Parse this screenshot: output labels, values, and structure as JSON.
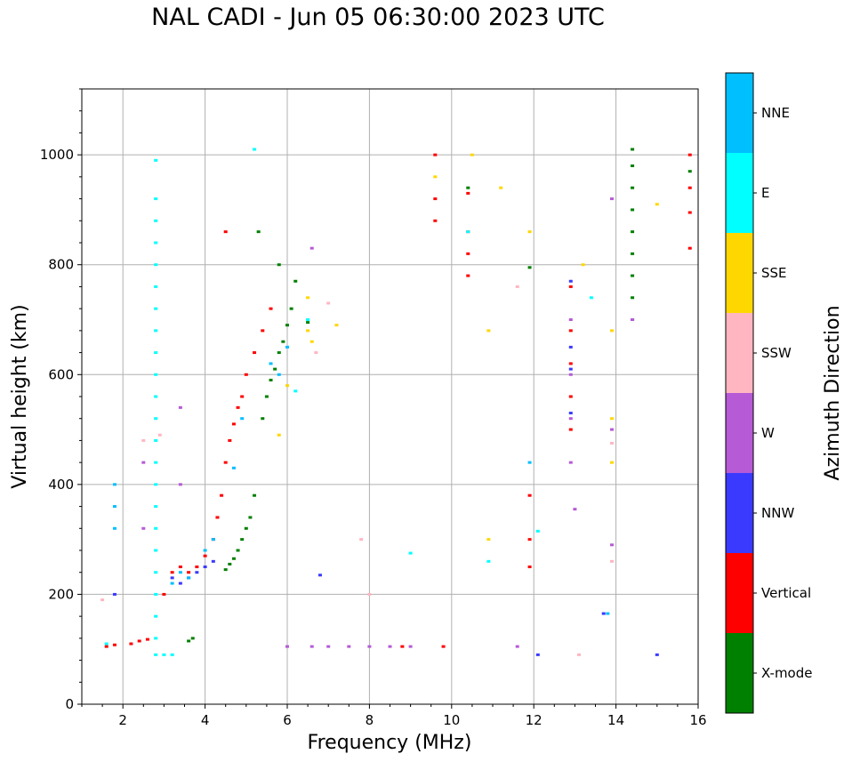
{
  "chart_data": {
    "type": "scatter",
    "title": "NAL CADI - Jun 05 06:30:00 2023 UTC",
    "xlabel": "Frequency (MHz)",
    "ylabel": "Virtual height (km)",
    "xlim": [
      1,
      16
    ],
    "ylim": [
      0,
      1120
    ],
    "xticks": [
      2,
      4,
      6,
      8,
      10,
      12,
      14,
      16
    ],
    "yticks": [
      0,
      200,
      400,
      600,
      800,
      1000
    ],
    "grid": true,
    "colorbar": {
      "label": "Azimuth Direction",
      "categories": [
        {
          "name": "X-mode",
          "color": "#008000"
        },
        {
          "name": "Vertical",
          "color": "#ff0000"
        },
        {
          "name": "NNW",
          "color": "#3a3aff"
        },
        {
          "name": "W",
          "color": "#b65ad6"
        },
        {
          "name": "SSW",
          "color": "#ffb6c1"
        },
        {
          "name": "SSE",
          "color": "#ffd700"
        },
        {
          "name": "E",
          "color": "#00ffff"
        },
        {
          "name": "NNE",
          "color": "#00bfff"
        }
      ]
    },
    "series": [
      {
        "name": "X-mode",
        "points": [
          [
            3.6,
            115
          ],
          [
            3.7,
            120
          ],
          [
            4.5,
            245
          ],
          [
            4.6,
            255
          ],
          [
            4.7,
            265
          ],
          [
            4.8,
            280
          ],
          [
            4.9,
            300
          ],
          [
            5.0,
            320
          ],
          [
            5.1,
            340
          ],
          [
            5.2,
            380
          ],
          [
            5.4,
            520
          ],
          [
            5.5,
            560
          ],
          [
            5.6,
            590
          ],
          [
            5.7,
            610
          ],
          [
            5.8,
            640
          ],
          [
            5.9,
            660
          ],
          [
            6.0,
            690
          ],
          [
            6.1,
            720
          ],
          [
            6.2,
            770
          ],
          [
            5.3,
            860
          ],
          [
            5.8,
            800
          ],
          [
            10.4,
            940
          ],
          [
            11.9,
            795
          ],
          [
            14.4,
            700
          ],
          [
            14.4,
            740
          ],
          [
            14.4,
            780
          ],
          [
            14.4,
            820
          ],
          [
            14.4,
            860
          ],
          [
            14.4,
            900
          ],
          [
            14.4,
            940
          ],
          [
            14.4,
            980
          ],
          [
            14.4,
            1010
          ],
          [
            15.8,
            970
          ],
          [
            6.5,
            695
          ]
        ]
      },
      {
        "name": "Vertical",
        "points": [
          [
            1.6,
            105
          ],
          [
            1.8,
            108
          ],
          [
            2.2,
            110
          ],
          [
            2.4,
            115
          ],
          [
            2.6,
            118
          ],
          [
            3.0,
            200
          ],
          [
            3.2,
            240
          ],
          [
            3.4,
            250
          ],
          [
            3.6,
            240
          ],
          [
            3.8,
            250
          ],
          [
            4.0,
            270
          ],
          [
            4.2,
            300
          ],
          [
            4.3,
            340
          ],
          [
            4.4,
            380
          ],
          [
            4.5,
            440
          ],
          [
            4.6,
            480
          ],
          [
            4.7,
            510
          ],
          [
            4.8,
            540
          ],
          [
            4.9,
            560
          ],
          [
            5.0,
            600
          ],
          [
            5.2,
            640
          ],
          [
            5.4,
            680
          ],
          [
            5.6,
            720
          ],
          [
            4.5,
            860
          ],
          [
            9.6,
            880
          ],
          [
            9.6,
            920
          ],
          [
            9.6,
            1000
          ],
          [
            10.4,
            780
          ],
          [
            10.4,
            820
          ],
          [
            10.4,
            860
          ],
          [
            10.4,
            930
          ],
          [
            11.9,
            380
          ],
          [
            11.9,
            300
          ],
          [
            11.9,
            250
          ],
          [
            12.9,
            500
          ],
          [
            12.9,
            560
          ],
          [
            12.9,
            620
          ],
          [
            12.9,
            680
          ],
          [
            12.9,
            760
          ],
          [
            15.8,
            830
          ],
          [
            15.8,
            895
          ],
          [
            15.8,
            940
          ],
          [
            15.8,
            1000
          ],
          [
            8.8,
            105
          ],
          [
            9.8,
            105
          ]
        ]
      },
      {
        "name": "NNW",
        "points": [
          [
            1.8,
            200
          ],
          [
            3.2,
            230
          ],
          [
            3.4,
            220
          ],
          [
            3.6,
            230
          ],
          [
            3.8,
            240
          ],
          [
            4.0,
            250
          ],
          [
            4.2,
            260
          ],
          [
            6.8,
            235
          ],
          [
            12.9,
            530
          ],
          [
            12.9,
            610
          ],
          [
            12.9,
            650
          ],
          [
            12.9,
            770
          ],
          [
            15.0,
            90
          ],
          [
            12.1,
            90
          ],
          [
            13.7,
            165
          ]
        ]
      },
      {
        "name": "W",
        "points": [
          [
            2.5,
            320
          ],
          [
            2.5,
            440
          ],
          [
            3.4,
            400
          ],
          [
            3.4,
            540
          ],
          [
            6.0,
            105
          ],
          [
            6.6,
            105
          ],
          [
            7.0,
            105
          ],
          [
            7.5,
            105
          ],
          [
            8.0,
            105
          ],
          [
            8.5,
            105
          ],
          [
            9.0,
            105
          ],
          [
            6.6,
            830
          ],
          [
            12.9,
            440
          ],
          [
            12.9,
            520
          ],
          [
            12.9,
            600
          ],
          [
            12.9,
            700
          ],
          [
            13.0,
            355
          ],
          [
            13.9,
            290
          ],
          [
            13.9,
            500
          ],
          [
            13.9,
            920
          ],
          [
            14.4,
            700
          ],
          [
            11.6,
            105
          ]
        ]
      },
      {
        "name": "SSW",
        "points": [
          [
            1.5,
            190
          ],
          [
            2.5,
            480
          ],
          [
            2.9,
            490
          ],
          [
            6.7,
            640
          ],
          [
            7.0,
            730
          ],
          [
            7.8,
            300
          ],
          [
            8.0,
            200
          ],
          [
            13.1,
            90
          ],
          [
            13.9,
            260
          ],
          [
            13.9,
            475
          ],
          [
            11.6,
            760
          ]
        ]
      },
      {
        "name": "SSE",
        "points": [
          [
            6.5,
            740
          ],
          [
            6.5,
            680
          ],
          [
            6.6,
            660
          ],
          [
            6.0,
            580
          ],
          [
            5.8,
            490
          ],
          [
            7.2,
            690
          ],
          [
            9.6,
            960
          ],
          [
            10.5,
            1000
          ],
          [
            10.9,
            680
          ],
          [
            10.9,
            300
          ],
          [
            11.2,
            940
          ],
          [
            11.9,
            860
          ],
          [
            13.2,
            800
          ],
          [
            13.9,
            680
          ],
          [
            13.9,
            440
          ],
          [
            15.0,
            910
          ],
          [
            13.9,
            520
          ]
        ]
      },
      {
        "name": "E",
        "points": [
          [
            1.6,
            110
          ],
          [
            2.8,
            990
          ],
          [
            2.8,
            920
          ],
          [
            2.8,
            880
          ],
          [
            2.8,
            840
          ],
          [
            2.8,
            800
          ],
          [
            2.8,
            760
          ],
          [
            2.8,
            720
          ],
          [
            2.8,
            680
          ],
          [
            2.8,
            640
          ],
          [
            2.8,
            600
          ],
          [
            2.8,
            560
          ],
          [
            2.8,
            520
          ],
          [
            2.8,
            480
          ],
          [
            2.8,
            440
          ],
          [
            2.8,
            400
          ],
          [
            2.8,
            360
          ],
          [
            2.8,
            320
          ],
          [
            2.8,
            280
          ],
          [
            2.8,
            240
          ],
          [
            2.8,
            200
          ],
          [
            2.8,
            160
          ],
          [
            2.8,
            120
          ],
          [
            2.8,
            90
          ],
          [
            3.0,
            90
          ],
          [
            3.2,
            90
          ],
          [
            5.2,
            1010
          ],
          [
            6.5,
            700
          ],
          [
            10.4,
            860
          ],
          [
            10.9,
            260
          ],
          [
            9.0,
            275
          ],
          [
            12.1,
            315
          ],
          [
            13.4,
            740
          ],
          [
            6.2,
            570
          ]
        ]
      },
      {
        "name": "NNE",
        "points": [
          [
            1.8,
            320
          ],
          [
            1.8,
            360
          ],
          [
            1.8,
            400
          ],
          [
            3.2,
            220
          ],
          [
            3.4,
            240
          ],
          [
            3.6,
            230
          ],
          [
            4.0,
            280
          ],
          [
            4.2,
            300
          ],
          [
            5.6,
            620
          ],
          [
            5.8,
            600
          ],
          [
            6.0,
            650
          ],
          [
            4.7,
            430
          ],
          [
            4.9,
            520
          ],
          [
            13.8,
            165
          ],
          [
            11.9,
            440
          ]
        ]
      }
    ]
  }
}
